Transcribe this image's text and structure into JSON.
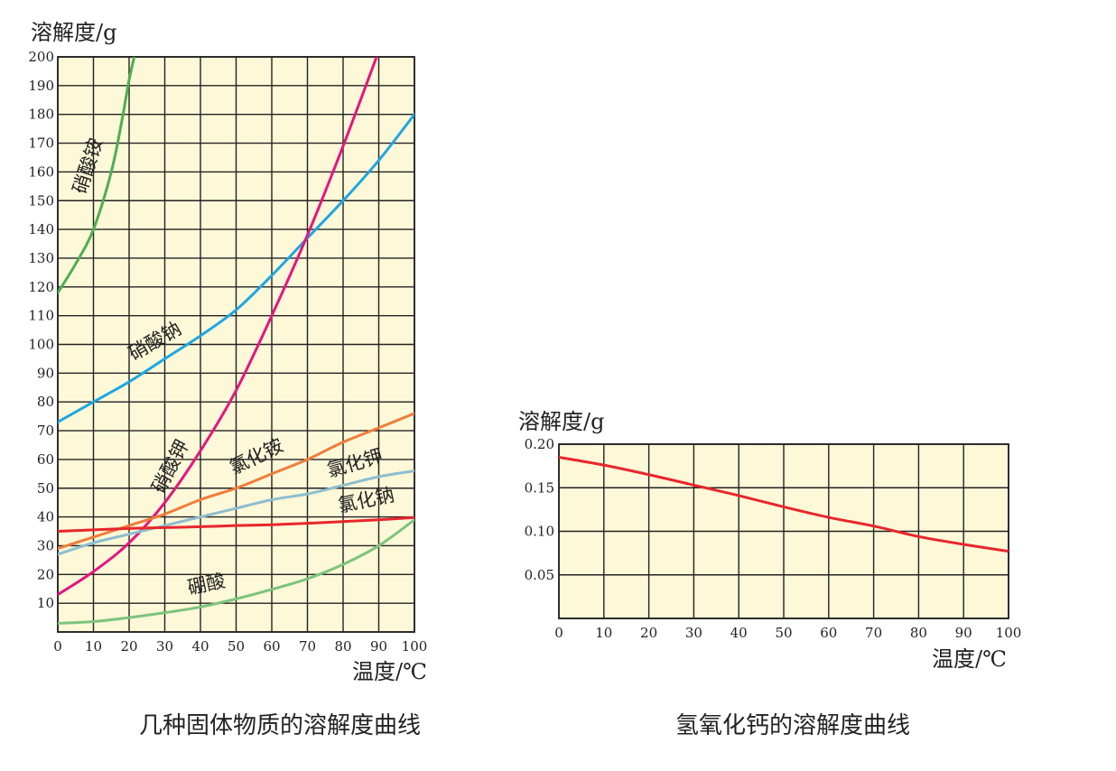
{
  "chart_data": [
    {
      "type": "line",
      "caption": "几种固体物质的溶解度曲线",
      "ylabel": "溶解度/g",
      "xlabel": "温度/℃",
      "xlim": [
        0,
        100
      ],
      "ylim": [
        0,
        200
      ],
      "x_ticks": [
        "0",
        "10",
        "20",
        "30",
        "40",
        "50",
        "60",
        "70",
        "80",
        "90",
        "100"
      ],
      "y_ticks": [
        "10",
        "20",
        "30",
        "40",
        "50",
        "60",
        "70",
        "80",
        "90",
        "100",
        "110",
        "120",
        "130",
        "140",
        "150",
        "160",
        "170",
        "180",
        "190",
        "200"
      ],
      "plot_background": "#fdf8d8",
      "grid": true,
      "series": [
        {
          "name": "硝酸铵",
          "color": "#4caf50",
          "x": [
            0,
            5,
            10,
            15,
            18,
            20,
            22
          ],
          "y": [
            118,
            128,
            140,
            160,
            178,
            192,
            203
          ]
        },
        {
          "name": "硝酸钠",
          "color": "#1ea7e1",
          "x": [
            0,
            10,
            20,
            30,
            40,
            50,
            60,
            70,
            80,
            90,
            100
          ],
          "y": [
            73,
            80,
            87,
            95,
            103,
            112,
            124,
            137,
            150,
            164,
            180
          ]
        },
        {
          "name": "硝酸钾",
          "color": "#e6157f",
          "x": [
            0,
            10,
            20,
            30,
            40,
            50,
            60,
            70,
            80,
            90
          ],
          "y": [
            13,
            21,
            31,
            45,
            63,
            84,
            110,
            138,
            169,
            202
          ]
        },
        {
          "name": "氯化铵",
          "color": "#f07c3a",
          "x": [
            0,
            10,
            20,
            30,
            40,
            50,
            60,
            70,
            80,
            90,
            100
          ],
          "y": [
            29,
            33,
            37,
            41,
            46,
            50,
            55,
            60,
            66,
            71,
            76
          ]
        },
        {
          "name": "氯化钾",
          "color": "#8dbecf",
          "x": [
            0,
            10,
            20,
            30,
            40,
            50,
            60,
            70,
            80,
            90,
            100
          ],
          "y": [
            27,
            31,
            34,
            37,
            40,
            43,
            46,
            48,
            51,
            54,
            56
          ]
        },
        {
          "name": "氯化钠",
          "color": "#e8262c",
          "x": [
            0,
            10,
            20,
            30,
            40,
            50,
            60,
            70,
            80,
            90,
            100
          ],
          "y": [
            35,
            35.5,
            36,
            36.3,
            36.6,
            37,
            37.3,
            37.8,
            38.4,
            39,
            39.8
          ]
        },
        {
          "name": "硼酸",
          "color": "#7cc47c",
          "x": [
            0,
            10,
            20,
            30,
            40,
            50,
            60,
            70,
            80,
            90,
            100
          ],
          "y": [
            3,
            3.6,
            5,
            6.7,
            8.7,
            11.5,
            14.8,
            18.5,
            23.5,
            30,
            39
          ]
        }
      ]
    },
    {
      "type": "line",
      "caption": "氢氧化钙的溶解度曲线",
      "ylabel": "溶解度/g",
      "xlabel": "温度/℃",
      "xlim": [
        0,
        100
      ],
      "ylim": [
        0,
        0.2
      ],
      "x_ticks": [
        "0",
        "10",
        "20",
        "30",
        "40",
        "50",
        "60",
        "70",
        "80",
        "90",
        "100"
      ],
      "y_ticks": [
        "0.05",
        "0.10",
        "0.15",
        "0.20"
      ],
      "plot_background": "#fdf8d8",
      "grid": true,
      "series": [
        {
          "name": "氢氧化钙",
          "color": "#e8262c",
          "x": [
            0,
            10,
            20,
            30,
            40,
            50,
            60,
            70,
            80,
            90,
            100
          ],
          "y": [
            0.185,
            0.176,
            0.165,
            0.153,
            0.141,
            0.128,
            0.116,
            0.106,
            0.094,
            0.085,
            0.077
          ]
        }
      ]
    }
  ]
}
